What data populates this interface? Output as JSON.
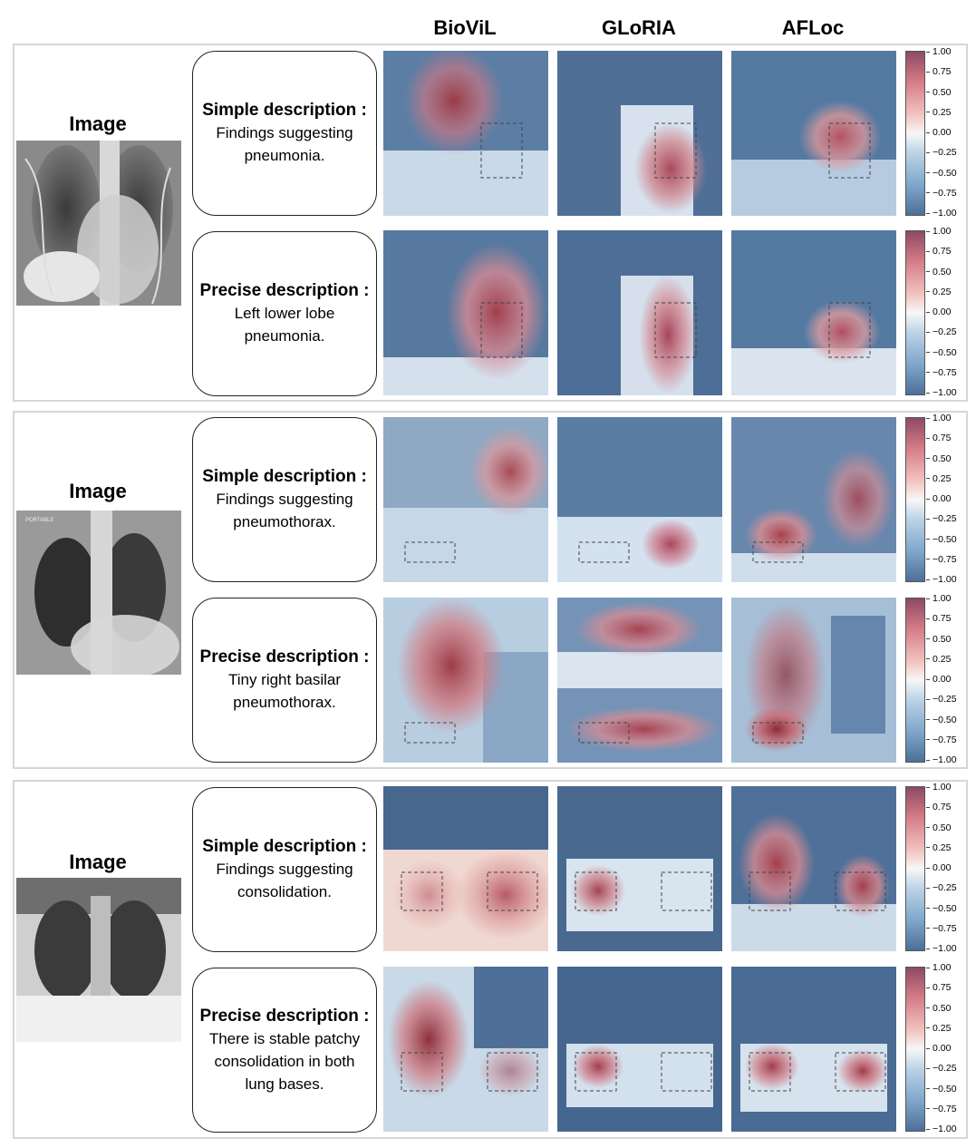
{
  "columns": [
    "BioViL",
    "GLoRIA",
    "AFLoc"
  ],
  "image_label": "Image",
  "colorbar_ticks": [
    "1.00",
    "0.75",
    "0.50",
    "0.25",
    "0.00",
    "−0.25",
    "−0.50",
    "−0.75",
    "−1.00"
  ],
  "panels": [
    {
      "simple": {
        "heading": "Simple description :",
        "lines": [
          "Findings suggesting",
          "pneumonia."
        ]
      },
      "precise": {
        "heading": "Precise description :",
        "lines": [
          "Left lower lobe",
          "pneumonia."
        ]
      }
    },
    {
      "simple": {
        "heading": "Simple description :",
        "lines": [
          "Findings suggesting",
          "pneumothorax."
        ]
      },
      "precise": {
        "heading": "Precise description :",
        "lines": [
          "Tiny right basilar",
          "pneumothorax."
        ]
      }
    },
    {
      "simple": {
        "heading": "Simple description :",
        "lines": [
          "Findings suggesting",
          "consolidation."
        ]
      },
      "precise": {
        "heading": "Precise description :",
        "lines": [
          "There is stable patchy",
          "consolidation in both",
          "lung bases."
        ]
      }
    }
  ]
}
